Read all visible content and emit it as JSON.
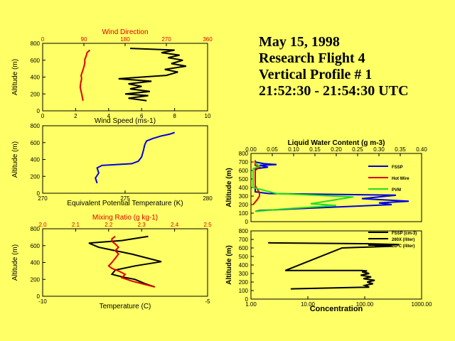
{
  "header": {
    "line1": "May 15, 1998",
    "line2": "Research Flight 4",
    "line3": "Vertical Profile # 1",
    "line4": "21:52:30 - 21:54:30 UTC"
  },
  "colors": {
    "background": "#ffff66",
    "red": "#dd0000",
    "blue": "#0000dd",
    "green": "#22dd22",
    "black": "#000000"
  },
  "chart_data": [
    {
      "id": "wind",
      "type": "line",
      "ylabel": "Altitude (m)",
      "ylim": [
        0,
        800
      ],
      "yticks": [
        "0",
        "200",
        "400",
        "600",
        "800"
      ],
      "bottom_axis": {
        "label": "Wind Speed (ms-1)",
        "range": [
          0,
          10
        ],
        "ticks": [
          "0",
          "2",
          "4",
          "6",
          "8",
          "10"
        ]
      },
      "top_axis": {
        "label": "Wind Direction",
        "range": [
          0,
          360
        ],
        "ticks": [
          "0",
          "90",
          "180",
          "270",
          "360"
        ],
        "color": "#dd0000"
      },
      "series": [
        {
          "name": "Wind Direction",
          "axis": "top",
          "color": "#dd0000",
          "x": [
            88,
            86,
            84,
            82,
            83,
            85,
            84,
            87,
            90,
            92,
            92,
            95,
            97,
            103
          ],
          "y": [
            120,
            180,
            230,
            280,
            330,
            380,
            420,
            470,
            520,
            570,
            610,
            650,
            690,
            720
          ]
        },
        {
          "name": "Wind Speed",
          "axis": "bottom",
          "color": "#000000",
          "x": [
            6.3,
            5.2,
            6.4,
            5.0,
            6.5,
            5.3,
            6.0,
            5.2,
            6.6,
            4.6,
            6.0,
            7.5,
            8.2,
            7.4,
            8.7,
            7.8,
            8.5,
            7.6,
            8.3,
            7.2,
            8.0,
            5.3
          ],
          "y": [
            120,
            150,
            180,
            200,
            230,
            260,
            290,
            320,
            350,
            380,
            400,
            420,
            460,
            490,
            530,
            560,
            600,
            630,
            660,
            690,
            720,
            740
          ]
        }
      ]
    },
    {
      "id": "theta_e",
      "type": "line",
      "ylabel": "Altitude (m)",
      "ylim": [
        0,
        800
      ],
      "yticks": [
        "0",
        "200",
        "400",
        "600",
        "800"
      ],
      "bottom_axis": {
        "label": "Equivalent Potential Temperature (K)",
        "range": [
          270,
          280
        ],
        "ticks": [
          "270",
          "275",
          "280"
        ]
      },
      "series": [
        {
          "name": "Theta-e",
          "color": "#0000dd",
          "x": [
            273.3,
            273.2,
            273.4,
            273.3,
            273.6,
            274.5,
            275.4,
            275.8,
            276.0,
            276.1,
            276.2,
            276.3,
            276.7,
            277.2,
            277.7,
            278.0
          ],
          "y": [
            120,
            180,
            240,
            300,
            330,
            340,
            350,
            380,
            430,
            500,
            580,
            620,
            650,
            680,
            700,
            720
          ]
        }
      ]
    },
    {
      "id": "temp_mr",
      "type": "line",
      "ylabel": "Altitude (m)",
      "ylim": [
        0,
        800
      ],
      "yticks": [
        "0",
        "200",
        "400",
        "600",
        "800"
      ],
      "bottom_axis": {
        "label": "Temperature (C)",
        "range": [
          -10,
          -5
        ],
        "ticks": [
          "-10",
          "-5"
        ]
      },
      "top_axis": {
        "label": "Mixing Ratio (g kg-1)",
        "range": [
          2.0,
          2.5
        ],
        "ticks": [
          "2.0",
          "2.1",
          "2.2",
          "2.3",
          "2.4",
          "2.5"
        ],
        "color": "#dd0000"
      },
      "series": [
        {
          "name": "Temperature",
          "axis": "bottom",
          "color": "#000000",
          "x": [
            -6.6,
            -6.9,
            -7.2,
            -7.6,
            -7.9,
            -7.8,
            -7.2,
            -6.4,
            -6.8,
            -7.3,
            -7.8,
            -8.3,
            -8.6,
            -7.6,
            -6.8
          ],
          "y": [
            110,
            150,
            200,
            230,
            260,
            310,
            360,
            410,
            450,
            500,
            540,
            580,
            630,
            660,
            710
          ]
        },
        {
          "name": "Mixing Ratio",
          "axis": "top",
          "color": "#dd0000",
          "x": [
            2.34,
            2.31,
            2.27,
            2.24,
            2.25,
            2.23,
            2.21,
            2.2,
            2.21,
            2.22,
            2.23,
            2.22,
            2.23,
            2.22,
            2.21,
            2.21,
            2.22
          ],
          "y": [
            110,
            140,
            180,
            220,
            260,
            300,
            330,
            360,
            400,
            450,
            500,
            540,
            580,
            620,
            650,
            680,
            710
          ]
        }
      ]
    },
    {
      "id": "lwc",
      "type": "line",
      "title": "Liquid Water Content (g m-3)",
      "ylabel": "Altitude (m)",
      "ylim": [
        0,
        800
      ],
      "yticks": [
        "0",
        "100",
        "200",
        "300",
        "400",
        "500",
        "600",
        "700",
        "800"
      ],
      "top_axis": {
        "range": [
          0,
          0.4
        ],
        "ticks": [
          "0.00",
          "0.05",
          "0.10",
          "0.15",
          "0.20",
          "0.25",
          "0.30",
          "0.35",
          "0.40"
        ]
      },
      "legend": [
        "FSSP",
        "Hot Wire",
        "PVM"
      ],
      "series": [
        {
          "name": "FSSP",
          "color": "#0000dd",
          "x": [
            0.01,
            0.02,
            0.1,
            0.24,
            0.33,
            0.3,
            0.37,
            0.26,
            0.34,
            0.04,
            0.01,
            0.01,
            0.01,
            0.01,
            0.01,
            0.04,
            0.02,
            0.06,
            0.03,
            0.01
          ],
          "y": [
            120,
            130,
            150,
            180,
            200,
            220,
            240,
            270,
            310,
            330,
            350,
            400,
            500,
            580,
            620,
            640,
            660,
            670,
            680,
            700
          ]
        },
        {
          "name": "Hot Wire",
          "color": "#dd0000",
          "x": [
            0.005,
            0.015,
            0.02,
            0.02,
            0.01,
            0.01,
            0.01,
            0.02,
            0.01,
            0.01,
            0.01
          ],
          "y": [
            200,
            260,
            300,
            340,
            420,
            500,
            600,
            640,
            660,
            690,
            720
          ]
        },
        {
          "name": "PVM",
          "color": "#22dd22",
          "x": [
            0.01,
            0.08,
            0.2,
            0.14,
            0.19,
            0.24,
            0.15,
            0.06,
            0.005,
            0.005,
            0.005,
            0.02,
            0.01
          ],
          "y": [
            120,
            150,
            190,
            210,
            250,
            290,
            310,
            330,
            400,
            500,
            620,
            650,
            690
          ]
        }
      ]
    },
    {
      "id": "conc",
      "type": "line",
      "xlabel": "Concentration",
      "xscale": "log",
      "ylabel": "Altitude (m)",
      "ylim": [
        0,
        800
      ],
      "yticks": [
        "0",
        "100",
        "200",
        "300",
        "400",
        "500",
        "600",
        "700",
        "800"
      ],
      "bottom_axis": {
        "range": [
          1,
          1000
        ],
        "ticks": [
          "1.00",
          "10.00",
          "100.00",
          "1000.00"
        ]
      },
      "legend": [
        "FSSP (cm-3)",
        "260X (/liter)",
        "2D-C (/liter)"
      ],
      "series": [
        {
          "name": "FSSP (cm-3)",
          "color": "#000000",
          "x": [
            5,
            120,
            100,
            140,
            110,
            150,
            95,
            130,
            85,
            120,
            90,
            110,
            90,
            4,
            40,
            300,
            150,
            400,
            100,
            2
          ],
          "y": [
            120,
            140,
            160,
            180,
            200,
            220,
            240,
            260,
            280,
            300,
            320,
            330,
            335,
            335,
            600,
            620,
            630,
            640,
            650,
            660
          ]
        }
      ]
    }
  ]
}
